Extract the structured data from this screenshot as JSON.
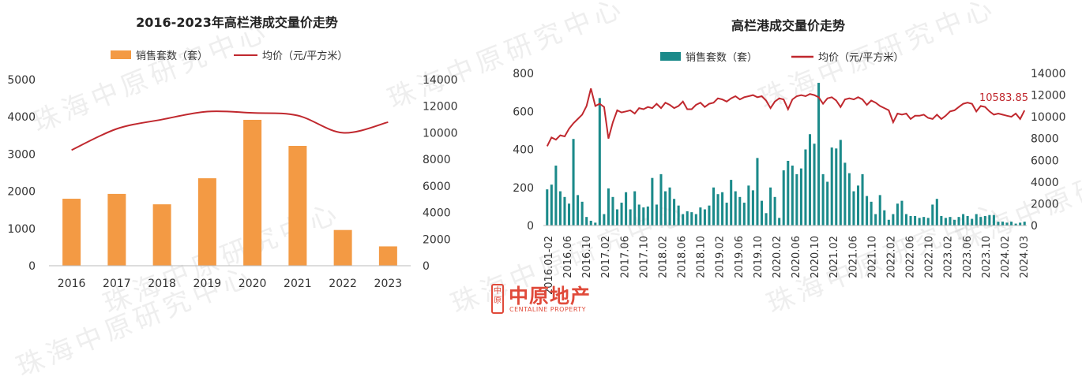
{
  "chart_data": [
    {
      "type": "bar",
      "title": "2016-2023年高栏港成交量价走势",
      "categories": [
        "2016",
        "2017",
        "2018",
        "2019",
        "2020",
        "2021",
        "2022",
        "2023"
      ],
      "series": [
        {
          "name": "销售套数（套）",
          "type": "bar",
          "axis": "left",
          "values": [
            1800,
            1930,
            1650,
            2350,
            3920,
            3220,
            960,
            520
          ]
        },
        {
          "name": "均价（元/平方米）",
          "type": "line",
          "axis": "right",
          "values": [
            8700,
            10300,
            11000,
            11600,
            11500,
            11300,
            10000,
            10800
          ]
        }
      ],
      "ylim_left": [
        0,
        5000
      ],
      "yticks_left": [
        "0",
        "1000",
        "2000",
        "3000",
        "4000",
        "5000"
      ],
      "ylim_right": [
        0,
        14000
      ],
      "yticks_right": [
        "0",
        "2000",
        "4000",
        "6000",
        "8000",
        "10000",
        "12000",
        "14000"
      ],
      "colors": {
        "bar": "#f39a44",
        "line": "#c0282e"
      },
      "legend": "top"
    },
    {
      "type": "bar",
      "title": "高栏港成交量价走势",
      "xticks": [
        "2016.01-02",
        "2016.06",
        "2016.10",
        "2017.02",
        "2017.06",
        "2017.10",
        "2018.02",
        "2018.06",
        "2018.10",
        "2019.02",
        "2019.06",
        "2019.10",
        "2020.02",
        "2020.06",
        "2020.10",
        "2021.02",
        "2021.06",
        "2021.10",
        "2022.02",
        "2022.06",
        "2022.10",
        "2023.02",
        "2023.06",
        "2023.10",
        "2024.02",
        "2024.03"
      ],
      "series": [
        {
          "name": "销售套数（套）",
          "type": "bar",
          "axis": "left",
          "values": [
            190,
            215,
            315,
            180,
            150,
            115,
            455,
            160,
            125,
            45,
            25,
            15,
            670,
            60,
            195,
            150,
            85,
            120,
            175,
            85,
            180,
            110,
            95,
            100,
            250,
            110,
            270,
            180,
            200,
            140,
            105,
            60,
            75,
            70,
            60,
            95,
            85,
            105,
            200,
            165,
            175,
            120,
            240,
            180,
            150,
            120,
            210,
            185,
            355,
            130,
            65,
            200,
            150,
            40,
            290,
            340,
            315,
            270,
            300,
            400,
            480,
            430,
            750,
            270,
            230,
            410,
            405,
            450,
            330,
            275,
            180,
            210,
            270,
            155,
            125,
            60,
            160,
            80,
            30,
            60,
            115,
            130,
            60,
            50,
            50,
            40,
            45,
            40,
            110,
            140,
            50,
            40,
            45,
            30,
            45,
            60,
            50,
            35,
            60,
            45,
            50,
            55,
            55,
            20,
            20,
            15,
            20,
            10,
            15,
            20
          ]
        },
        {
          "name": "均价（元/平方米）",
          "type": "line",
          "axis": "right",
          "values": [
            7300,
            8100,
            7900,
            8300,
            8200,
            8900,
            9400,
            9800,
            10200,
            11000,
            12600,
            11000,
            11200,
            10900,
            8000,
            9500,
            10600,
            10400,
            10500,
            10600,
            10300,
            10800,
            10700,
            10900,
            10800,
            11200,
            10800,
            11300,
            11100,
            10800,
            11000,
            11400,
            10700,
            10700,
            11100,
            11300,
            10900,
            11200,
            11300,
            11700,
            11600,
            11400,
            11700,
            11900,
            11600,
            11800,
            11900,
            12000,
            11800,
            11900,
            11500,
            10800,
            11400,
            11700,
            11600,
            10700,
            11600,
            11900,
            12000,
            11900,
            12100,
            12000,
            11800,
            11200,
            11700,
            11800,
            11500,
            10900,
            11600,
            11700,
            11600,
            11800,
            11600,
            11100,
            11500,
            11300,
            11000,
            10800,
            10600,
            9500,
            10300,
            10200,
            10300,
            9800,
            10100,
            10100,
            10200,
            9900,
            9800,
            10200,
            9800,
            10100,
            10500,
            10600,
            10900,
            11200,
            11300,
            11200,
            10500,
            11000,
            10900,
            10500,
            10200,
            10300,
            10200,
            10100,
            10000,
            10300,
            9800,
            10583.85
          ]
        }
      ],
      "annotation": "10583.85",
      "ylim_left": [
        0,
        800
      ],
      "yticks_left": [
        "0",
        "200",
        "400",
        "600",
        "800"
      ],
      "ylim_right": [
        0,
        14000
      ],
      "yticks_right": [
        "0",
        "2000",
        "4000",
        "6000",
        "8000",
        "10000",
        "12000",
        "14000"
      ],
      "colors": {
        "bar": "#1b8a8a",
        "line": "#c0282e"
      },
      "legend": "top"
    }
  ],
  "watermarks": [
    "珠海中原研究中心",
    "珠海中原研究中心",
    "珠海中原研究中心",
    "珠海中原研究中心",
    "珠海中原研究中心",
    "珠海中原研究中心",
    "珠海中原研究中心",
    "珠海中原研究中心"
  ],
  "logo": {
    "cn": "中原地产",
    "en": "CENTALINE PROPERTY",
    "mark": "中原"
  }
}
